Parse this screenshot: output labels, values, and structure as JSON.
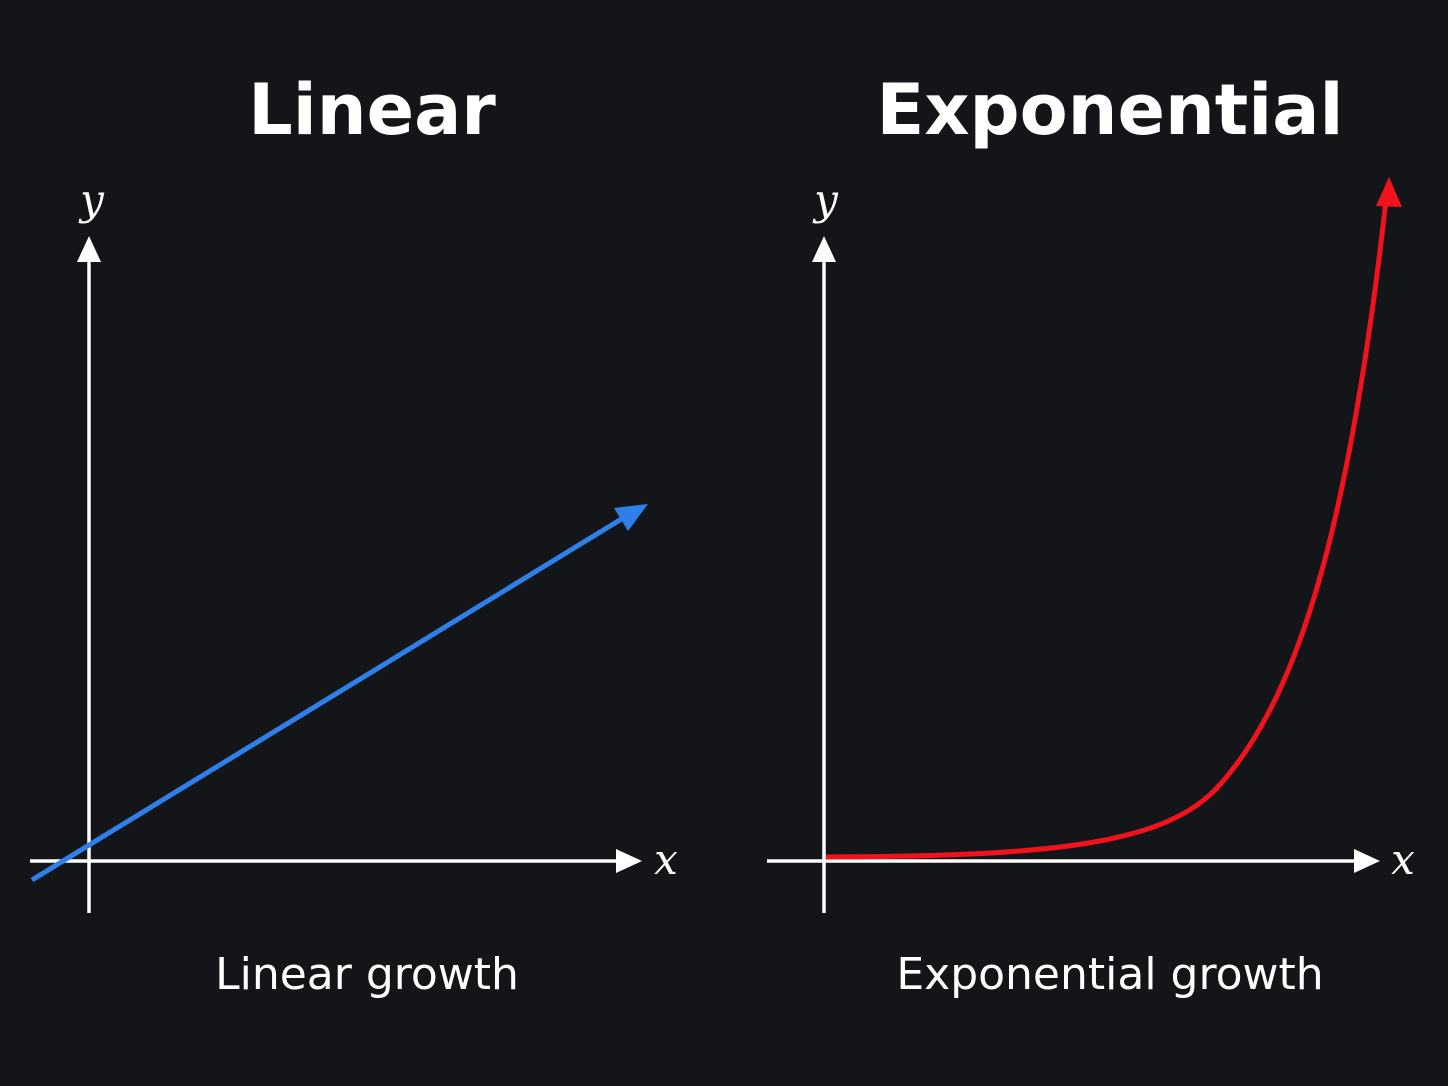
{
  "panels": [
    {
      "title": "Linear",
      "y_label": "y",
      "x_label": "x",
      "caption": "Linear growth"
    },
    {
      "title": "Exponential",
      "y_label": "y",
      "x_label": "x",
      "caption": "Exponential growth"
    }
  ]
}
